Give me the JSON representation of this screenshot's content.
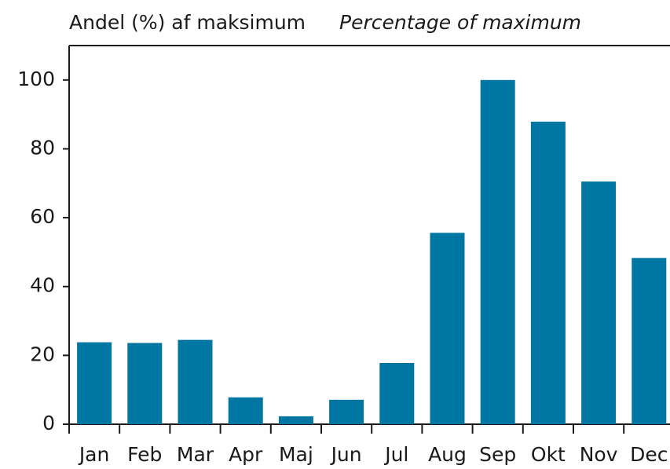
{
  "chart_data": {
    "type": "bar",
    "title": "Andel (%) af maksimum",
    "subtitle": "Percentage of maximum",
    "categories": [
      "Jan",
      "Feb",
      "Mar",
      "Apr",
      "Maj",
      "Jun",
      "Jul",
      "Aug",
      "Sep",
      "Okt",
      "Nov",
      "Dec"
    ],
    "values": [
      23.8,
      23.6,
      24.5,
      7.8,
      2.3,
      7.1,
      17.8,
      55.6,
      100,
      87.9,
      70.5,
      48.3
    ],
    "color": "#0077a3",
    "ylim": [
      0,
      110
    ],
    "yticks": [
      0,
      20,
      40,
      60,
      80,
      100
    ],
    "grid": false
  }
}
